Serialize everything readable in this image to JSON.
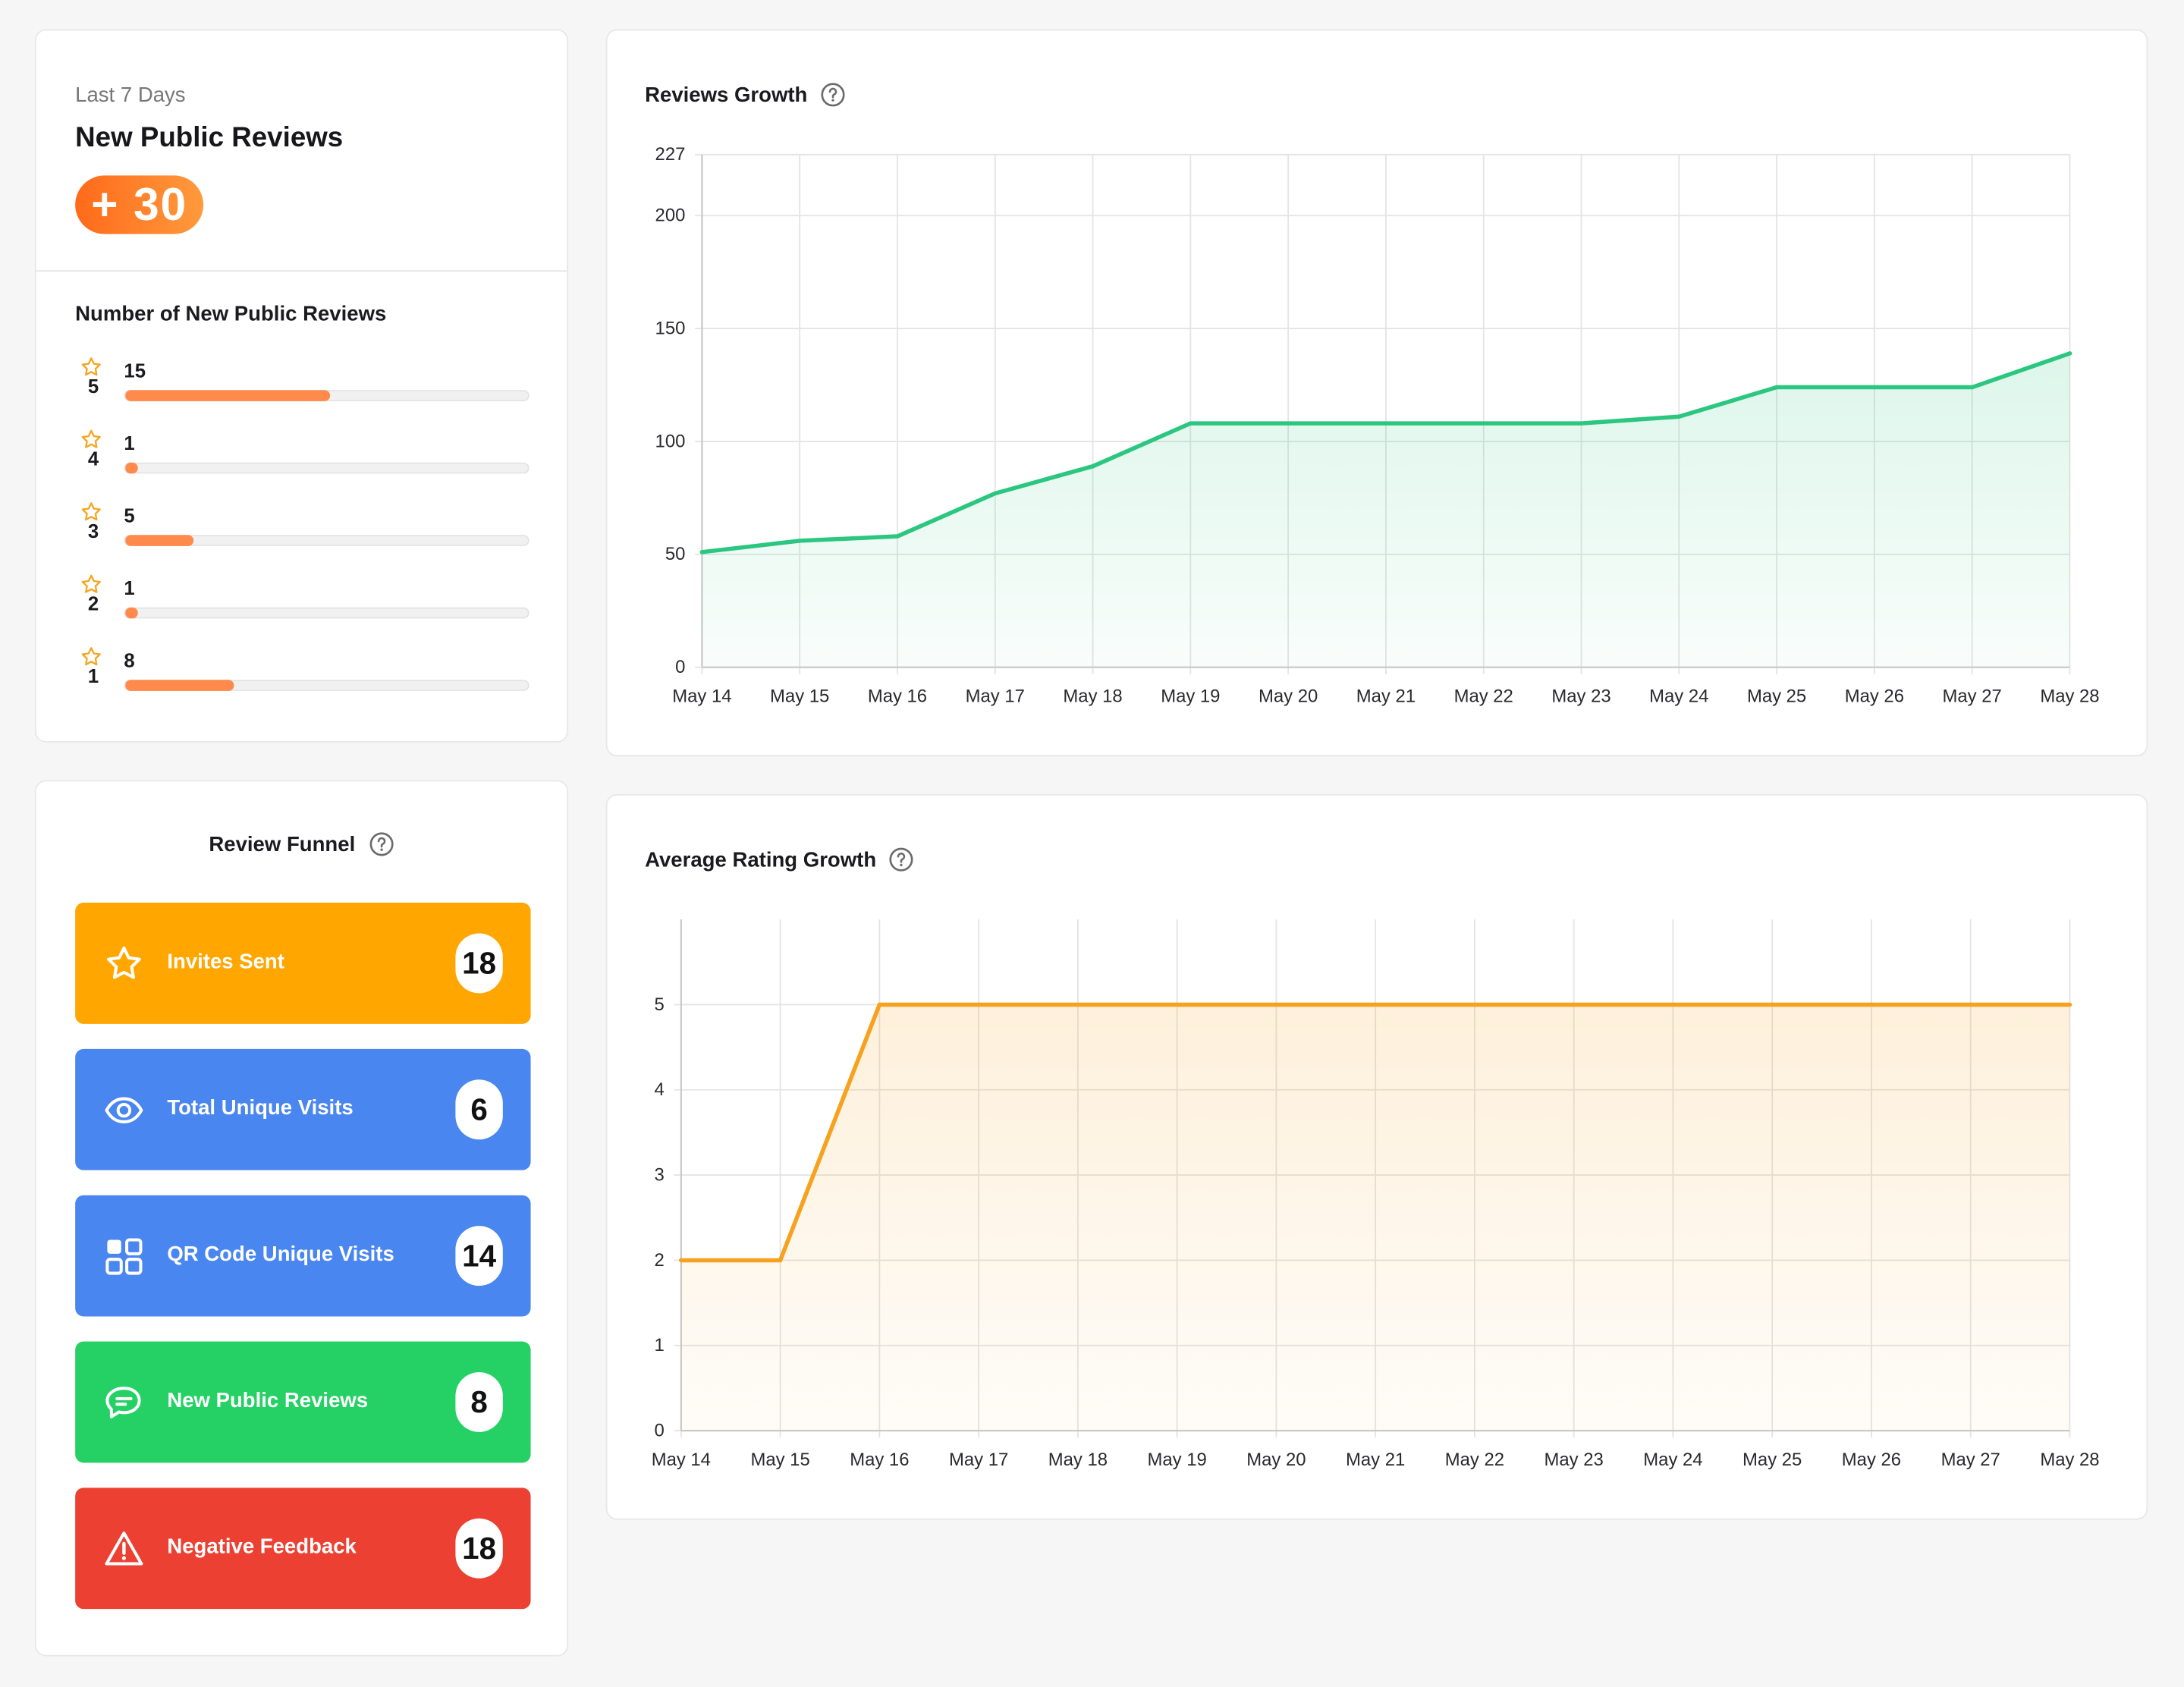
{
  "summary": {
    "period": "Last 7 Days",
    "title": "New Public Reviews",
    "delta": "+ 30",
    "breakdown_title": "Number of New Public Reviews",
    "ratings": [
      {
        "stars": "5",
        "count": "15",
        "fraction": 0.51
      },
      {
        "stars": "4",
        "count": "1",
        "fraction": 0.03
      },
      {
        "stars": "3",
        "count": "5",
        "fraction": 0.17
      },
      {
        "stars": "2",
        "count": "1",
        "fraction": 0.03
      },
      {
        "stars": "1",
        "count": "8",
        "fraction": 0.27
      }
    ],
    "colors": {
      "accent": "#ff8a4c",
      "star": "#f5a623"
    }
  },
  "funnel": {
    "title": "Review Funnel",
    "items": [
      {
        "label": "Invites Sent",
        "count": "18",
        "color": "#ffa600",
        "icon": "star-icon"
      },
      {
        "label": "Total Unique Visits",
        "count": "6",
        "color": "#4a86f0",
        "icon": "eye-icon"
      },
      {
        "label": "QR Code Unique Visits",
        "count": "14",
        "color": "#4a86f0",
        "icon": "qr-code-icon"
      },
      {
        "label": "New Public Reviews",
        "count": "8",
        "color": "#25d064",
        "icon": "chat-icon"
      },
      {
        "label": "Negative Feedback",
        "count": "18",
        "color": "#ec4132",
        "icon": "warning-icon"
      }
    ]
  },
  "chart_data": [
    {
      "type": "area",
      "title": "Reviews Growth",
      "xlabel": "",
      "ylabel": "",
      "color": "#2bc780",
      "grid": true,
      "x": [
        "May 14",
        "May 15",
        "May 16",
        "May 17",
        "May 18",
        "May 19",
        "May 20",
        "May 21",
        "May 22",
        "May 23",
        "May 24",
        "May 25",
        "May 26",
        "May 27",
        "May 28"
      ],
      "y": [
        51,
        56,
        58,
        77,
        89,
        108,
        108,
        108,
        108,
        108,
        111,
        124,
        124,
        124,
        139
      ],
      "yticks": [
        0,
        50,
        100,
        150,
        200,
        227
      ],
      "ylim": [
        0,
        227
      ]
    },
    {
      "type": "area",
      "title": "Average Rating Growth",
      "xlabel": "",
      "ylabel": "",
      "color": "#f6a21e",
      "grid": true,
      "x": [
        "May 14",
        "May 15",
        "May 16",
        "May 17",
        "May 18",
        "May 19",
        "May 20",
        "May 21",
        "May 22",
        "May 23",
        "May 24",
        "May 25",
        "May 26",
        "May 27",
        "May 28"
      ],
      "y": [
        2,
        2,
        5,
        5,
        5,
        5,
        5,
        5,
        5,
        5,
        5,
        5,
        5,
        5,
        5
      ],
      "yticks": [
        0,
        1,
        2,
        3,
        4,
        5
      ],
      "ylim": [
        0,
        6
      ]
    }
  ]
}
